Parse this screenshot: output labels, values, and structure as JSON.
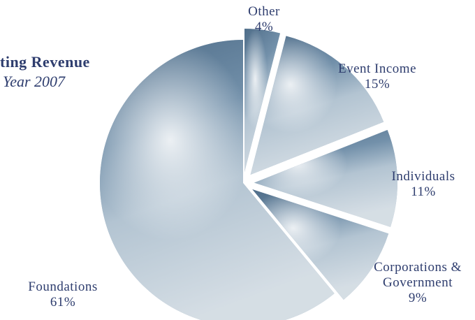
{
  "chart_data": {
    "type": "pie",
    "title": "ting Revenue",
    "subtitle": "Year 2007",
    "categories": [
      "Other",
      "Event Income",
      "Individuals",
      "Corporations & Government",
      "Foundations"
    ],
    "values": [
      4,
      15,
      11,
      9,
      61
    ],
    "value_labels": [
      "4%",
      "15%",
      "11%",
      "9%",
      "61%"
    ],
    "color": "#7d97ad"
  }
}
